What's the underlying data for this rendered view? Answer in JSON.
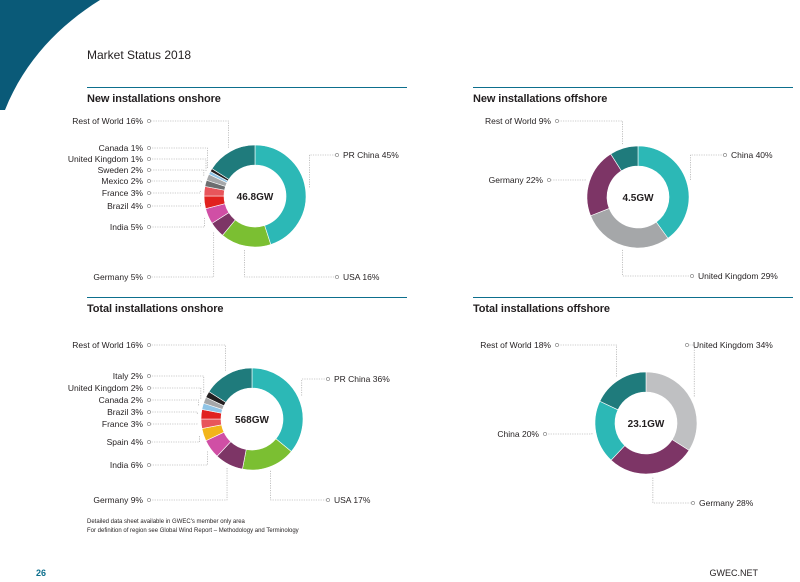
{
  "page": {
    "title": "Market Status 2018",
    "page_number": "26",
    "brand": "GWEC.NET",
    "footnotes": [
      "Detailed data sheet available in GWEC's member only area",
      "For definition of region see Global Wind Report – Methodology and Terminology"
    ]
  },
  "colors": {
    "accent": "#0d6f8d",
    "dark_corner": "#0a5a78"
  },
  "chart_data": [
    {
      "type": "pie",
      "title": "New installations onshore",
      "center_label": "46.8GW",
      "slices": [
        {
          "label": "PR China 45%",
          "value": 45,
          "color": "#2cb8b6"
        },
        {
          "label": "USA 16%",
          "value": 16,
          "color": "#7bbf32"
        },
        {
          "label": "Germany 5%",
          "value": 5,
          "color": "#7d3566"
        },
        {
          "label": "India 5%",
          "value": 5,
          "color": "#d04fa5"
        },
        {
          "label": "Brazil 4%",
          "value": 4,
          "color": "#e1211f"
        },
        {
          "label": "France 3%",
          "value": 3,
          "color": "#e8555b"
        },
        {
          "label": "Mexico 2%",
          "value": 2,
          "color": "#6c6e70"
        },
        {
          "label": "Sweden 2%",
          "value": 2,
          "color": "#a5a7a9"
        },
        {
          "label": "United Kingdom 1%",
          "value": 1,
          "color": "#8fc4e6"
        },
        {
          "label": "Canada 1%",
          "value": 1,
          "color": "#231f20"
        },
        {
          "label": "Rest of World 16%",
          "value": 16,
          "color": "#1f7b7c"
        }
      ]
    },
    {
      "type": "pie",
      "title": "New installations offshore",
      "center_label": "4.5GW",
      "slices": [
        {
          "label": "China 40%",
          "value": 40,
          "color": "#2cb8b6"
        },
        {
          "label": "United Kingdom 29%",
          "value": 29,
          "color": "#a5a7a9"
        },
        {
          "label": "Germany 22%",
          "value": 22,
          "color": "#7d3566"
        },
        {
          "label": "Rest of World 9%",
          "value": 9,
          "color": "#1f7b7c"
        }
      ]
    },
    {
      "type": "pie",
      "title": "Total installations onshore",
      "center_label": "568GW",
      "slices": [
        {
          "label": "PR China 36%",
          "value": 36,
          "color": "#2cb8b6"
        },
        {
          "label": "USA 17%",
          "value": 17,
          "color": "#7bbf32"
        },
        {
          "label": "Germany 9%",
          "value": 9,
          "color": "#7d3566"
        },
        {
          "label": "India 6%",
          "value": 6,
          "color": "#d04fa5"
        },
        {
          "label": "Spain 4%",
          "value": 4,
          "color": "#f2b51b"
        },
        {
          "label": "France 3%",
          "value": 3,
          "color": "#e8555b"
        },
        {
          "label": "Brazil 3%",
          "value": 3,
          "color": "#e1211f"
        },
        {
          "label": "Canada 2%",
          "value": 2,
          "color": "#8fc4e6"
        },
        {
          "label": "United Kingdom 2%",
          "value": 2,
          "color": "#a5a7a9"
        },
        {
          "label": "Italy 2%",
          "value": 2,
          "color": "#231f20"
        },
        {
          "label": "Rest of World 16%",
          "value": 16,
          "color": "#1f7b7c"
        }
      ]
    },
    {
      "type": "pie",
      "title": "Total installations offshore",
      "center_label": "23.1GW",
      "slices": [
        {
          "label": "United Kingdom 34%",
          "value": 34,
          "color": "#bfc0c2"
        },
        {
          "label": "Germany 28%",
          "value": 28,
          "color": "#7d3566"
        },
        {
          "label": "China 20%",
          "value": 20,
          "color": "#2cb8b6"
        },
        {
          "label": "Rest of World 18%",
          "value": 18,
          "color": "#1f7b7c"
        }
      ]
    }
  ]
}
